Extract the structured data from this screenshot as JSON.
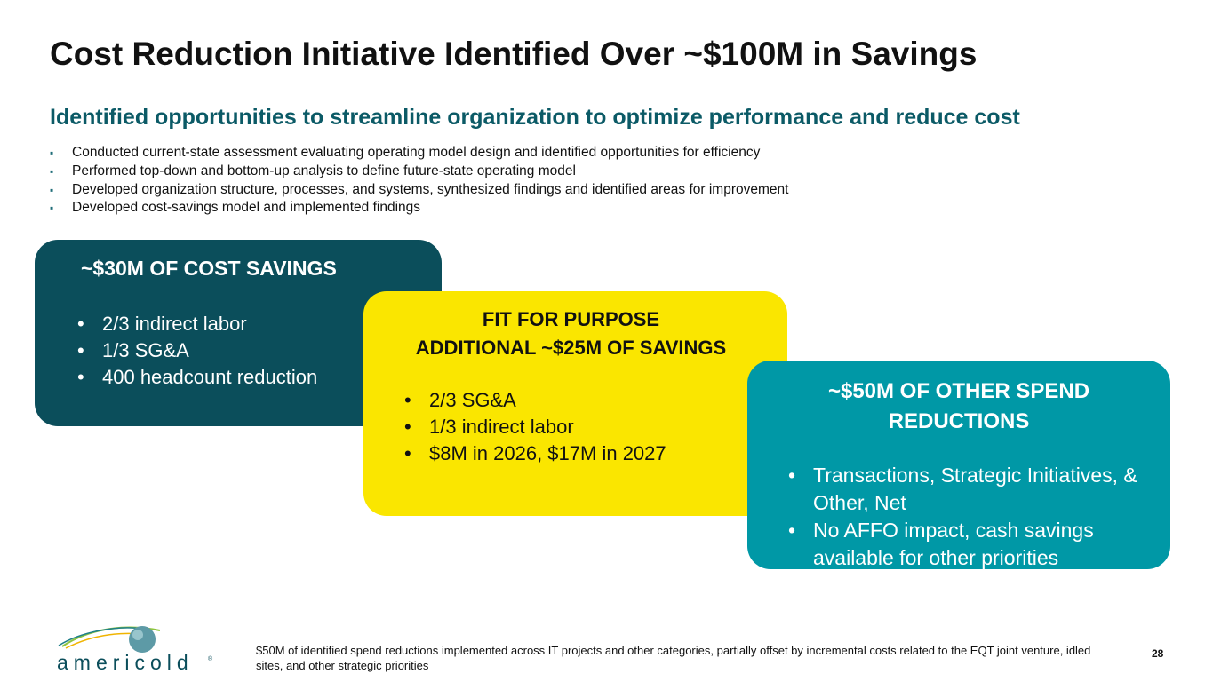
{
  "title": "Cost Reduction Initiative Identified Over ~$100M in Savings",
  "subtitle": "Identified opportunities to streamline organization to optimize performance and reduce cost",
  "bullets": [
    "Conducted current-state assessment evaluating operating model design and identified opportunities for efficiency",
    "Performed top-down and bottom-up analysis to define future-state operating model",
    "Developed organization structure, processes, and systems, synthesized findings and identified areas for improvement",
    "Developed cost-savings model and implemented findings"
  ],
  "cards": [
    {
      "heading": "~$30M OF COST SAVINGS",
      "items": [
        "2/3 indirect labor",
        "1/3 SG&A",
        "400 headcount reduction"
      ],
      "color": "#0b4e5b"
    },
    {
      "heading_line1": "FIT FOR PURPOSE",
      "heading_line2": "ADDITIONAL ~$25M OF SAVINGS",
      "items": [
        "2/3 SG&A",
        "1/3 indirect labor",
        "$8M in 2026, $17M in 2027"
      ],
      "color": "#fae600"
    },
    {
      "heading": "~$50M OF OTHER SPEND REDUCTIONS",
      "items": [
        "Transactions, Strategic Initiatives, & Other, Net",
        "No AFFO impact, cash savings available for other priorities"
      ],
      "color": "#0098a6"
    }
  ],
  "logo": {
    "wordmark": "americold",
    "icon": "globe-swoosh-logo"
  },
  "footnote": "$50M of identified spend reductions implemented across IT projects and other categories, partially offset by incremental costs related to the EQT joint venture, idled sites, and other strategic priorities",
  "page_number": "28"
}
